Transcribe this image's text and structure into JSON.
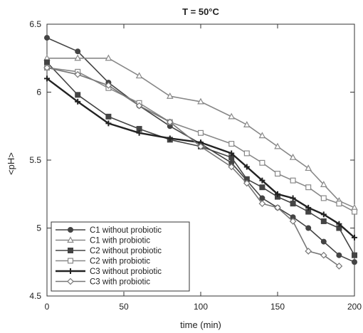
{
  "chart_data": {
    "type": "line",
    "title": "T = 50°C",
    "xlabel": "time (min)",
    "ylabel": "<pH>",
    "xlim": [
      0,
      200
    ],
    "ylim": [
      4.5,
      6.5
    ],
    "xticks": [
      0,
      50,
      100,
      150,
      200
    ],
    "yticks": [
      4.5,
      5,
      5.5,
      6,
      6.5
    ],
    "xtick_labels": [
      "0",
      "50",
      "100",
      "150",
      "200"
    ],
    "ytick_labels": [
      "4.5",
      "5",
      "5.5",
      "6",
      "6.5"
    ],
    "grid": false,
    "legend_position": "bottom-left",
    "series": [
      {
        "name": "C1 without probiotic",
        "color": "#444444",
        "marker": "circle",
        "filled": true,
        "x": [
          0,
          20,
          40,
          60,
          80,
          100,
          120,
          130,
          140,
          150,
          160,
          170,
          180,
          190,
          200
        ],
        "y": [
          6.4,
          6.3,
          6.07,
          5.9,
          5.75,
          5.62,
          5.48,
          5.35,
          5.22,
          5.15,
          5.08,
          5.0,
          4.9,
          4.8,
          4.75
        ]
      },
      {
        "name": "C1 with probiotic",
        "color": "#888888",
        "marker": "triangle",
        "filled": false,
        "x": [
          0,
          20,
          40,
          60,
          80,
          100,
          120,
          130,
          140,
          150,
          160,
          170,
          180,
          190,
          200
        ],
        "y": [
          6.25,
          6.25,
          6.25,
          6.12,
          5.97,
          5.93,
          5.82,
          5.76,
          5.68,
          5.6,
          5.52,
          5.44,
          5.32,
          5.2,
          5.15
        ]
      },
      {
        "name": "C2 without probiotic",
        "color": "#444444",
        "marker": "square",
        "filled": true,
        "x": [
          0,
          20,
          40,
          60,
          80,
          100,
          120,
          130,
          140,
          150,
          160,
          170,
          180,
          190,
          200
        ],
        "y": [
          6.22,
          5.98,
          5.82,
          5.73,
          5.65,
          5.6,
          5.52,
          5.36,
          5.3,
          5.23,
          5.18,
          5.12,
          5.05,
          5.0,
          4.8
        ]
      },
      {
        "name": "C2 with probiotic",
        "color": "#888888",
        "marker": "square",
        "filled": false,
        "x": [
          0,
          20,
          40,
          60,
          80,
          100,
          120,
          130,
          140,
          150,
          160,
          170,
          180,
          190,
          200
        ],
        "y": [
          6.18,
          6.15,
          6.03,
          5.92,
          5.78,
          5.7,
          5.62,
          5.55,
          5.48,
          5.4,
          5.35,
          5.3,
          5.22,
          5.18,
          5.12
        ]
      },
      {
        "name": "C3 without probiotic",
        "color": "#222222",
        "marker": "plus",
        "filled": false,
        "x": [
          0,
          20,
          40,
          60,
          80,
          100,
          120,
          130,
          140,
          150,
          160,
          170,
          180,
          190,
          200
        ],
        "y": [
          6.1,
          5.93,
          5.77,
          5.7,
          5.66,
          5.63,
          5.55,
          5.45,
          5.35,
          5.25,
          5.22,
          5.15,
          5.1,
          5.03,
          4.93
        ]
      },
      {
        "name": "C3 with probiotic",
        "color": "#777777",
        "marker": "diamond",
        "filled": false,
        "x": [
          0,
          20,
          40,
          60,
          80,
          100,
          120,
          130,
          140,
          150,
          160,
          170,
          180,
          190
        ],
        "y": [
          6.18,
          6.13,
          6.05,
          5.9,
          5.78,
          5.6,
          5.45,
          5.33,
          5.18,
          5.15,
          5.05,
          4.83,
          4.8,
          4.72
        ]
      }
    ]
  }
}
